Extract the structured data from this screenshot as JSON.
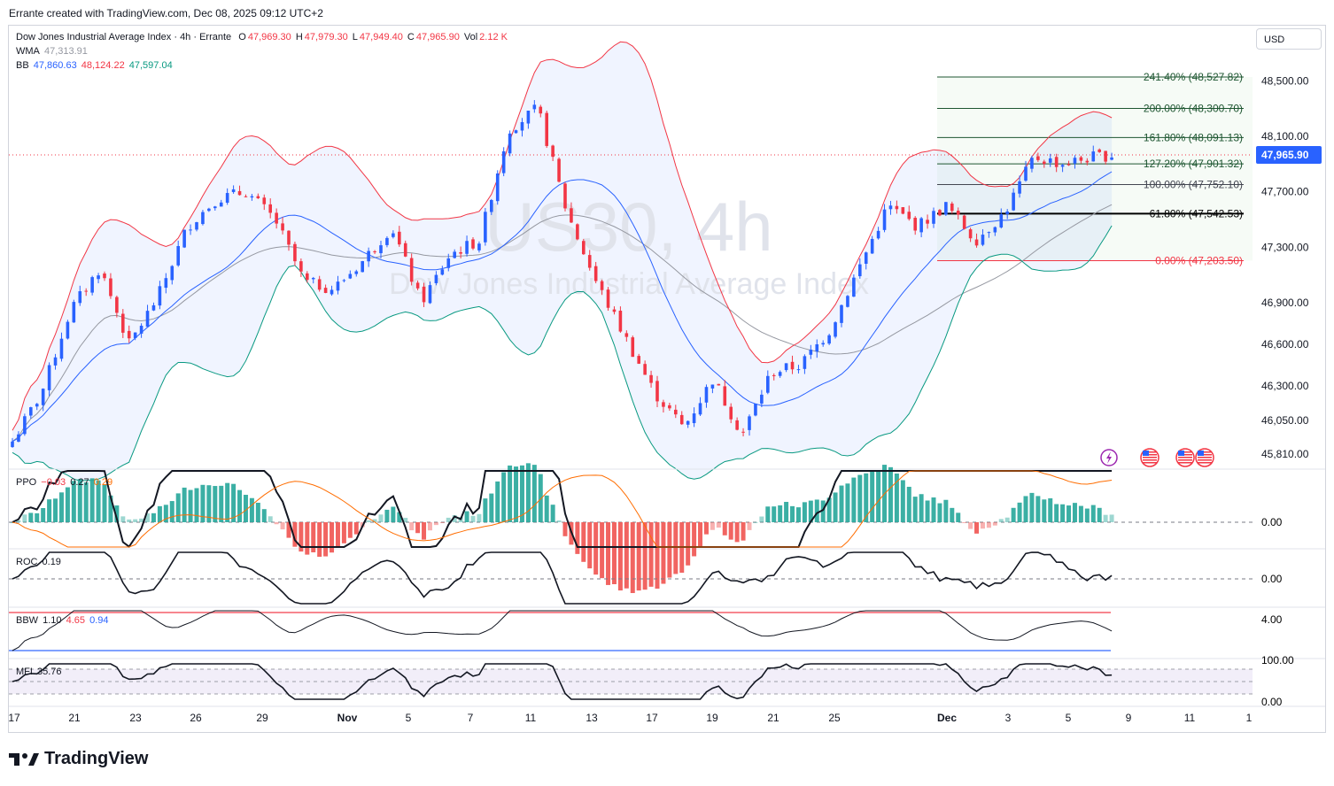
{
  "credit": "Errante created with TradingView.com, Dec 08, 2025 09:12 UTC+2",
  "header": {
    "symbol_line": "Dow Jones Industrial Average Index · 4h · Errante",
    "o_label": "O",
    "o": "47,969.30",
    "h_label": "H",
    "h": "47,979.30",
    "l_label": "L",
    "l": "47,949.40",
    "c_label": "C",
    "c": "47,965.90",
    "vol_label": "Vol",
    "vol": "2.12 K",
    "wma_label": "WMA",
    "wma": "47,313.91",
    "bb_label": "BB",
    "bb_basis": "47,860.63",
    "bb_upper": "48,124.22",
    "bb_lower": "47,597.04"
  },
  "currency_button": "USD",
  "watermark": {
    "line1": "US30, 4h",
    "line2": "Dow Jones Industrial Average Index"
  },
  "colors": {
    "up": "#2962ff",
    "down": "#f23645",
    "bb_upper": "#f23645",
    "bb_basis": "#2962ff",
    "bb_lower": "#089981",
    "wma": "#9598a1",
    "fill": "#2962ff",
    "hist_pos": "#26a69a",
    "hist_neg": "#ef5350",
    "ppo_signal": "#ff6d00",
    "mfi_band": "#7e57c2"
  },
  "price_axis": [
    "48,500.00",
    "48,100.00",
    "47,700.00",
    "47,300.00",
    "46,900.00",
    "46,600.00",
    "46,300.00",
    "46,050.00",
    "45,810.00"
  ],
  "last_price": "47,965.90",
  "fib_levels": [
    {
      "label": "241.40% (48,527.82)",
      "value": 48527.82,
      "color": "#1e5631"
    },
    {
      "label": "200.00% (48,300.70)",
      "value": 48300.7,
      "color": "#1e5631"
    },
    {
      "label": "161.80% (48,091.13)",
      "value": 48091.13,
      "color": "#1e5631"
    },
    {
      "label": "127.20% (47,901.32)",
      "value": 47901.32,
      "color": "#1e5631"
    },
    {
      "label": "100.00% (47,752.10)",
      "value": 47752.1,
      "color": "#434651"
    },
    {
      "label": "61.80% (47,542.53)",
      "value": 47542.53,
      "color": "#000000"
    },
    {
      "label": "0.00% (47,203.50)",
      "value": 47203.5,
      "color": "#f23645"
    }
  ],
  "time_axis": [
    "17",
    "21",
    "23",
    "26",
    "29",
    "Nov",
    "5",
    "7",
    "11",
    "13",
    "17",
    "19",
    "21",
    "25",
    "Dec",
    "3",
    "5",
    "9",
    "11",
    "1"
  ],
  "indicators": {
    "ppo": {
      "name": "PPO",
      "values": [
        "−0.03",
        "0.27",
        "0.29"
      ],
      "axis": [
        "0.00"
      ]
    },
    "roc": {
      "name": "ROC",
      "value": "0.19",
      "axis": [
        "0.00"
      ]
    },
    "bbw": {
      "name": "BBW",
      "values": [
        "1.10",
        "4.65",
        "0.94"
      ],
      "axis": [
        "4.00"
      ]
    },
    "mfi": {
      "name": "MFI",
      "value": "35.76",
      "axis": [
        "100.00",
        "0.00"
      ]
    }
  },
  "event_icons": [
    "lightning-icon",
    "us-flag-icon",
    "us-flag-icon",
    "us-flag-icon"
  ],
  "brand": "TradingView",
  "chart_data": {
    "type": "candlestick",
    "title": "Dow Jones Industrial Average Index · 4h · Errante",
    "ylim": [
      45700,
      48700
    ],
    "x_ticks": [
      "17",
      "21",
      "23",
      "26",
      "29",
      "Nov",
      "5",
      "7",
      "11",
      "13",
      "17",
      "19",
      "21",
      "25",
      "Dec",
      "3",
      "5",
      "9",
      "11"
    ],
    "close_path": [
      [
        0,
        45900
      ],
      [
        3,
        46250
      ],
      [
        6,
        46850
      ],
      [
        9,
        47150
      ],
      [
        12,
        46600
      ],
      [
        15,
        46950
      ],
      [
        18,
        47450
      ],
      [
        21,
        47650
      ],
      [
        24,
        47700
      ],
      [
        27,
        47500
      ],
      [
        30,
        47050
      ],
      [
        33,
        47000
      ],
      [
        36,
        47200
      ],
      [
        39,
        47450
      ],
      [
        42,
        46900
      ],
      [
        45,
        47250
      ],
      [
        48,
        47350
      ],
      [
        51,
        48150
      ],
      [
        54,
        48300
      ],
      [
        57,
        47550
      ],
      [
        60,
        47050
      ],
      [
        63,
        46650
      ],
      [
        66,
        46250
      ],
      [
        69,
        46000
      ],
      [
        72,
        46350
      ],
      [
        75,
        45950
      ],
      [
        78,
        46400
      ],
      [
        81,
        46450
      ],
      [
        84,
        46700
      ],
      [
        87,
        47150
      ],
      [
        90,
        47600
      ],
      [
        93,
        47450
      ],
      [
        96,
        47600
      ],
      [
        99,
        47350
      ],
      [
        102,
        47550
      ],
      [
        105,
        47950
      ],
      [
        108,
        47900
      ],
      [
        111,
        47950
      ],
      [
        113,
        47966
      ]
    ]
  }
}
